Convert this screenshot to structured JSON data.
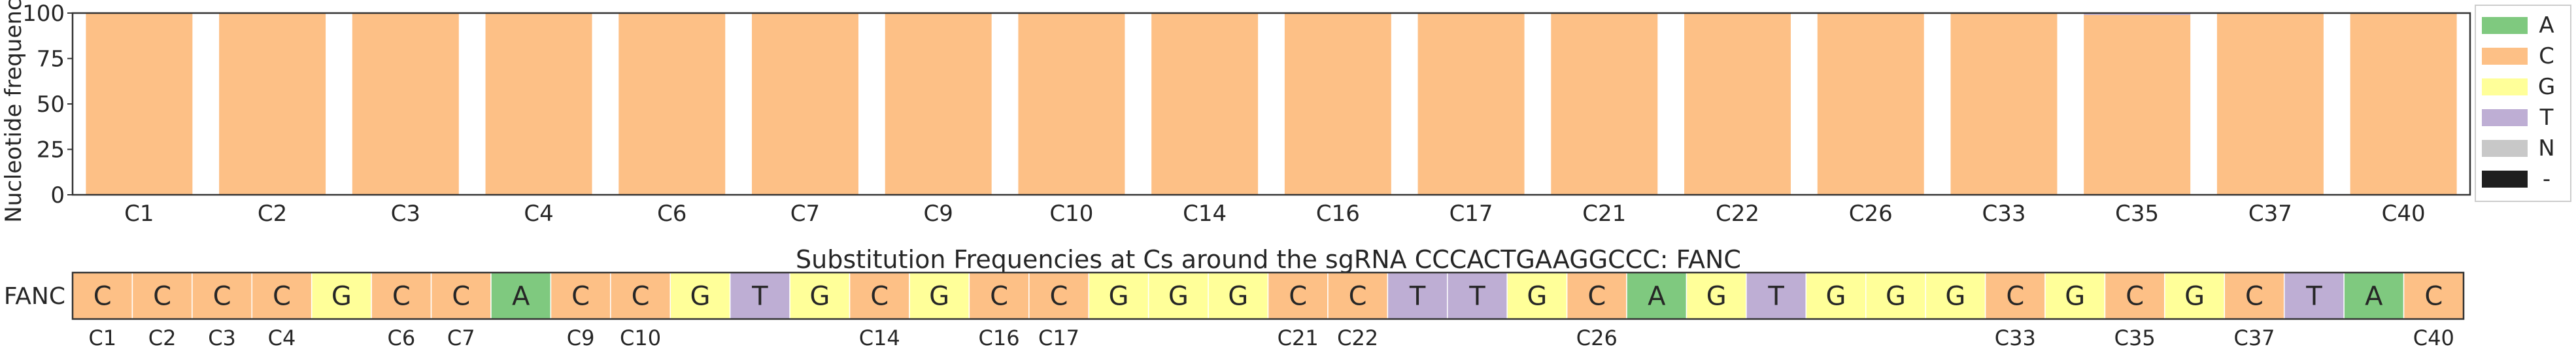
{
  "colors": {
    "A": "#7fc97f",
    "C": "#fdc086",
    "G": "#ffff99",
    "T": "#beaed4",
    "N": "#c8c8c8",
    "-": "#1f1f1f"
  },
  "chart_data": [
    {
      "type": "bar",
      "ylabel": "Nucleotide frequency",
      "ylim": [
        0,
        100
      ],
      "yticks": [
        0,
        25,
        50,
        75,
        100
      ],
      "grid": false,
      "legend_position": "right",
      "legend": [
        "A",
        "C",
        "G",
        "T",
        "N",
        "-"
      ],
      "categories": [
        "C1",
        "C2",
        "C3",
        "C4",
        "C6",
        "C7",
        "C9",
        "C10",
        "C14",
        "C16",
        "C17",
        "C21",
        "C22",
        "C26",
        "C33",
        "C35",
        "C37",
        "C40"
      ],
      "series": [
        {
          "name": "A",
          "values": [
            0,
            0,
            0,
            0,
            0,
            0,
            0,
            0,
            0,
            0,
            0,
            0,
            0,
            0,
            0,
            0,
            0,
            0
          ]
        },
        {
          "name": "C",
          "values": [
            100,
            100,
            100,
            100,
            100,
            100,
            100,
            100,
            100,
            100,
            100,
            100,
            100,
            100,
            100,
            99,
            100,
            100
          ]
        },
        {
          "name": "G",
          "values": [
            0,
            0,
            0,
            0,
            0,
            0,
            0,
            0,
            0,
            0,
            0,
            0,
            0,
            0,
            0,
            0,
            0,
            0
          ]
        },
        {
          "name": "T",
          "values": [
            0,
            0,
            0,
            0,
            0,
            0,
            0,
            0,
            0,
            0,
            0,
            0,
            0,
            0,
            0,
            1,
            0,
            0
          ]
        },
        {
          "name": "N",
          "values": [
            0,
            0,
            0,
            0,
            0,
            0,
            0,
            0,
            0,
            0,
            0,
            0,
            0,
            0,
            0,
            0,
            0,
            0
          ]
        },
        {
          "name": "-",
          "values": [
            0,
            0,
            0,
            0,
            0,
            0,
            0,
            0,
            0,
            0,
            0,
            0,
            0,
            0,
            0,
            0,
            0,
            0
          ]
        }
      ]
    },
    {
      "type": "table",
      "title": "Substitution Frequencies at Cs around the sgRNA CCCACTGAAGGCCC: FANC",
      "row_label": "FANC",
      "sequence": [
        "C",
        "C",
        "C",
        "C",
        "G",
        "C",
        "C",
        "A",
        "C",
        "C",
        "G",
        "T",
        "G",
        "C",
        "G",
        "C",
        "C",
        "G",
        "G",
        "G",
        "C",
        "C",
        "T",
        "T",
        "G",
        "C",
        "A",
        "G",
        "T",
        "G",
        "G",
        "G",
        "C",
        "G",
        "C",
        "G",
        "C",
        "T",
        "A",
        "C"
      ],
      "position_labels": [
        "C1",
        "C2",
        "C3",
        "C4",
        "",
        "C6",
        "C7",
        "",
        "C9",
        "C10",
        "",
        "",
        "",
        "C14",
        "",
        "C16",
        "C17",
        "",
        "",
        "",
        "C21",
        "C22",
        "",
        "",
        "",
        "C26",
        "",
        "",
        "",
        "",
        "",
        "",
        "C33",
        "",
        "C35",
        "",
        "C37",
        "",
        "",
        "C40"
      ]
    }
  ]
}
